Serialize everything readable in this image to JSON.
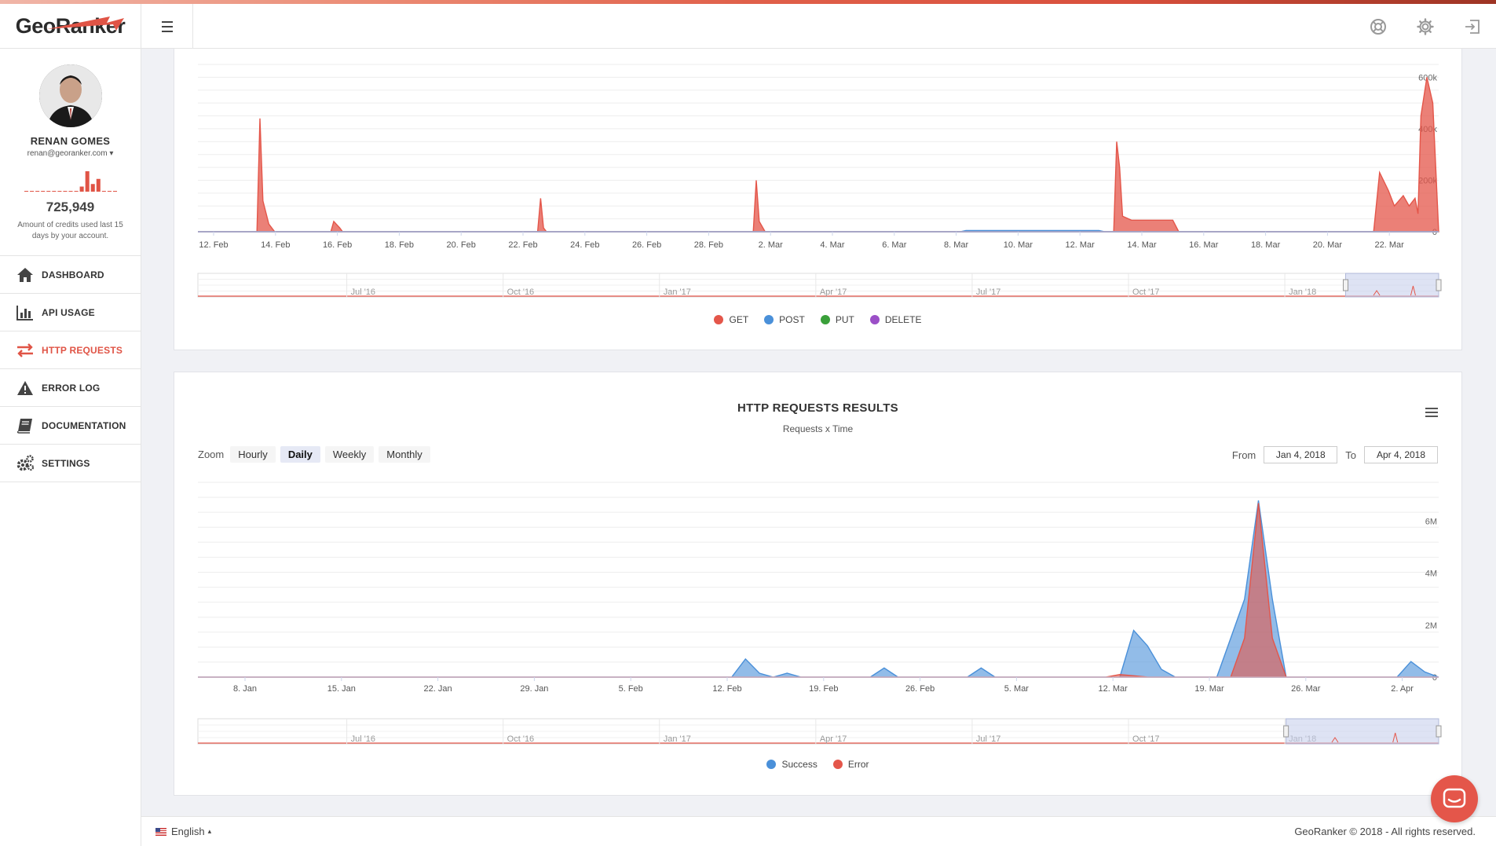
{
  "app": {
    "logo_text": "GeoRanker"
  },
  "header": {
    "icons": [
      "lifebuoy-icon",
      "gear-icon",
      "sign-out-icon"
    ]
  },
  "profile": {
    "name": "RENAN GOMES",
    "email": "renan@georanker.com",
    "credits_value": "725,949",
    "credits_note": "Amount of credits used last 15 days by your account.",
    "credits_spark": [
      0,
      0,
      0,
      0,
      0,
      0,
      0,
      0,
      0,
      0,
      2,
      8,
      3,
      5,
      0,
      0,
      0
    ]
  },
  "nav": [
    {
      "label": "DASHBOARD",
      "icon": "home-icon",
      "active": false
    },
    {
      "label": "API USAGE",
      "icon": "bar-chart-icon",
      "active": false
    },
    {
      "label": "HTTP REQUESTS",
      "icon": "exchange-arrows-icon",
      "active": true
    },
    {
      "label": "ERROR LOG",
      "icon": "warning-icon",
      "active": false
    },
    {
      "label": "DOCUMENTATION",
      "icon": "book-icon",
      "active": false
    },
    {
      "label": "SETTINGS",
      "icon": "gears-icon",
      "active": false
    }
  ],
  "colors": {
    "accent": "#e05446",
    "get": "#e4564a",
    "post": "#4a90d9",
    "put": "#3aa03a",
    "delete": "#9b4fc7",
    "success": "#4a90d9",
    "error": "#e4564a"
  },
  "chart_data": [
    {
      "type": "area",
      "title": "",
      "x_tick_labels": [
        "12. Feb",
        "14. Feb",
        "16. Feb",
        "18. Feb",
        "20. Feb",
        "22. Feb",
        "24. Feb",
        "26. Feb",
        "28. Feb",
        "2. Mar",
        "4. Mar",
        "6. Mar",
        "8. Mar",
        "10. Mar",
        "12. Mar",
        "14. Mar",
        "16. Mar",
        "18. Mar",
        "20. Mar",
        "22. Mar"
      ],
      "y_tick_labels": [
        "0",
        "200k",
        "400k",
        "600k"
      ],
      "ylim": [
        0,
        650000
      ],
      "x_days": [
        0,
        42
      ],
      "series": [
        {
          "name": "GET",
          "points": [
            [
              0,
              0
            ],
            [
              2,
              0
            ],
            [
              2.1,
              440000
            ],
            [
              2.2,
              120000
            ],
            [
              2.4,
              30000
            ],
            [
              2.6,
              0
            ],
            [
              4.5,
              0
            ],
            [
              4.6,
              40000
            ],
            [
              4.8,
              15000
            ],
            [
              4.9,
              0
            ],
            [
              11.5,
              0
            ],
            [
              11.6,
              130000
            ],
            [
              11.7,
              15000
            ],
            [
              11.8,
              0
            ],
            [
              18.8,
              0
            ],
            [
              18.9,
              200000
            ],
            [
              19.0,
              40000
            ],
            [
              19.2,
              0
            ],
            [
              31.0,
              0
            ],
            [
              31.1,
              350000
            ],
            [
              31.2,
              250000
            ],
            [
              31.3,
              60000
            ],
            [
              31.6,
              45000
            ],
            [
              32.5,
              45000
            ],
            [
              33.0,
              45000
            ],
            [
              33.2,
              0
            ],
            [
              39.8,
              0
            ],
            [
              40.0,
              230000
            ],
            [
              40.3,
              160000
            ],
            [
              40.5,
              100000
            ],
            [
              40.8,
              140000
            ],
            [
              41.0,
              100000
            ],
            [
              41.2,
              130000
            ],
            [
              41.3,
              70000
            ],
            [
              41.4,
              450000
            ],
            [
              41.6,
              600000
            ],
            [
              41.8,
              500000
            ],
            [
              42.0,
              0
            ]
          ]
        },
        {
          "name": "POST",
          "points": [
            [
              0,
              0
            ],
            [
              25.8,
              0
            ],
            [
              26,
              5000
            ],
            [
              30.5,
              5000
            ],
            [
              30.7,
              0
            ],
            [
              42,
              0
            ]
          ]
        },
        {
          "name": "PUT",
          "points": [
            [
              0,
              0
            ],
            [
              42,
              0
            ]
          ]
        },
        {
          "name": "DELETE",
          "points": [
            [
              0,
              0
            ],
            [
              42,
              0
            ]
          ]
        }
      ],
      "navigator_labels": [
        "Jul '16",
        "Oct '16",
        "Jan '17",
        "Apr '17",
        "Jul '17",
        "Oct '17",
        "Jan '18"
      ],
      "legend": [
        "GET",
        "POST",
        "PUT",
        "DELETE"
      ]
    },
    {
      "type": "area",
      "title": "HTTP REQUESTS RESULTS",
      "subtitle": "Requests x Time",
      "x_tick_labels": [
        "8. Jan",
        "15. Jan",
        "22. Jan",
        "29. Jan",
        "5. Feb",
        "12. Feb",
        "19. Feb",
        "26. Feb",
        "5. Mar",
        "12. Mar",
        "19. Mar",
        "26. Mar",
        "2. Apr"
      ],
      "y_tick_labels": [
        "0",
        "2M",
        "4M",
        "6M"
      ],
      "ylim": [
        0,
        7500000
      ],
      "x_days": [
        4.5,
        94
      ],
      "series": [
        {
          "name": "Success",
          "points": [
            [
              4.5,
              0
            ],
            [
              43,
              0
            ],
            [
              44,
              700000
            ],
            [
              45,
              150000
            ],
            [
              46,
              0
            ],
            [
              47,
              150000
            ],
            [
              48,
              0
            ],
            [
              53,
              0
            ],
            [
              54,
              350000
            ],
            [
              55,
              0
            ],
            [
              60,
              0
            ],
            [
              61,
              350000
            ],
            [
              62,
              0
            ],
            [
              71,
              0
            ],
            [
              72,
              1800000
            ],
            [
              73,
              1200000
            ],
            [
              74,
              300000
            ],
            [
              75,
              0
            ],
            [
              78,
              0
            ],
            [
              79,
              1500000
            ],
            [
              80,
              3000000
            ],
            [
              81,
              6800000
            ],
            [
              82,
              3000000
            ],
            [
              83,
              0
            ],
            [
              91,
              0
            ],
            [
              92,
              600000
            ],
            [
              93,
              200000
            ],
            [
              94,
              0
            ]
          ]
        },
        {
          "name": "Error",
          "points": [
            [
              4.5,
              0
            ],
            [
              70,
              0
            ],
            [
              71,
              100000
            ],
            [
              72,
              50000
            ],
            [
              73,
              0
            ],
            [
              79,
              0
            ],
            [
              80,
              1500000
            ],
            [
              81,
              6700000
            ],
            [
              82,
              1500000
            ],
            [
              83,
              0
            ],
            [
              94,
              0
            ]
          ]
        }
      ],
      "navigator_labels": [
        "Jul '16",
        "Oct '16",
        "Jan '17",
        "Apr '17",
        "Jul '17",
        "Oct '17",
        "Jan '18"
      ],
      "legend": [
        "Success",
        "Error"
      ]
    }
  ],
  "results_chart": {
    "title": "HTTP REQUESTS RESULTS",
    "subtitle": "Requests x Time",
    "zoom_label": "Zoom",
    "zoom_options": [
      "Hourly",
      "Daily",
      "Weekly",
      "Monthly"
    ],
    "zoom_active": "Daily",
    "from_label": "From",
    "from_value": "Jan 4, 2018",
    "to_label": "To",
    "to_value": "Apr 4, 2018"
  },
  "footer": {
    "language": "English",
    "copyright": "GeoRanker © 2018 - All rights reserved."
  }
}
